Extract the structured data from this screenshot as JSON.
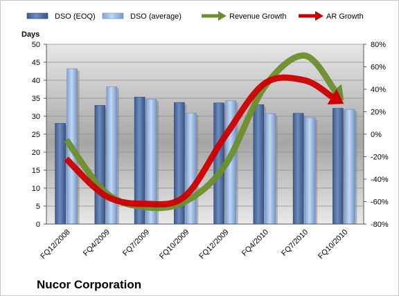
{
  "chart_data": {
    "type": "bar",
    "title": "Nucor Corporation",
    "ylabel": "Days",
    "categories": [
      "FQ12/2008",
      "FQ4/2009",
      "FQ7/2009",
      "FQ10/2009",
      "FQ12/2009",
      "FQ4/2010",
      "FQ7/2010",
      "FQ10/2010"
    ],
    "ylim": [
      0,
      50
    ],
    "y_ticks": [
      "0",
      "5",
      "10",
      "15",
      "20",
      "25",
      "30",
      "35",
      "40",
      "45",
      "50"
    ],
    "y2lim": [
      -80,
      80
    ],
    "y2_ticks": [
      "-80%",
      "-60%",
      "-40%",
      "-20%",
      "0%",
      "20%",
      "40%",
      "60%",
      "80%"
    ],
    "series": [
      {
        "name": "DSO (EOQ)",
        "type": "bar",
        "axis": "left",
        "color": "#4f6fa0",
        "values": [
          28,
          33,
          35.3,
          33.8,
          33.7,
          33.2,
          30.8,
          32.2
        ]
      },
      {
        "name": "DSO (average)",
        "type": "bar",
        "axis": "left",
        "color": "#8fb3e3",
        "values": [
          43.2,
          38.2,
          34.7,
          30.9,
          34.3,
          30.7,
          29.6,
          31.9
        ]
      },
      {
        "name": "Revenue Growth",
        "type": "line",
        "axis": "right",
        "color": "#6b8f2d",
        "values": [
          -5,
          -52,
          -65,
          -60,
          -28,
          42,
          70,
          30
        ]
      },
      {
        "name": "AR Growth",
        "type": "line",
        "axis": "right",
        "color": "#cc0000",
        "values": [
          -22,
          -55,
          -62,
          -55,
          -2,
          45,
          48,
          27
        ]
      }
    ],
    "legend_position": "top",
    "grid": true
  }
}
